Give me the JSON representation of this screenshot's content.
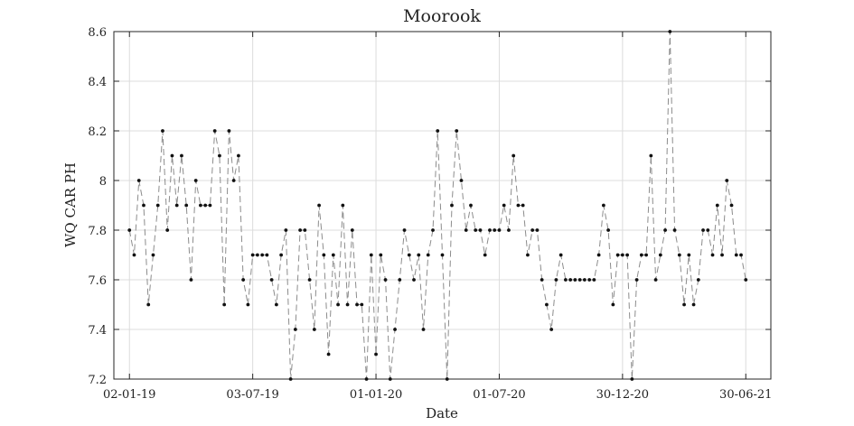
{
  "chart_data": {
    "type": "line",
    "title": "Moorook",
    "xlabel": "Date",
    "ylabel": "WQ CAR PH",
    "ylim": [
      7.2,
      8.6
    ],
    "yticks": [
      7.2,
      7.4,
      7.6,
      7.8,
      8.0,
      8.2,
      8.4,
      8.6
    ],
    "ytick_labels": [
      "7.2",
      "7.4",
      "7.6",
      "7.8",
      "8",
      "8.2",
      "8.4",
      "8.6"
    ],
    "xlim": [
      "2018-12-10",
      "2021-08-06"
    ],
    "xticks": [
      {
        "date": "2019-01-02",
        "label": "02-01-19"
      },
      {
        "date": "2019-07-03",
        "label": "03-07-19"
      },
      {
        "date": "2020-01-01",
        "label": "01-01-20"
      },
      {
        "date": "2020-07-01",
        "label": "01-07-20"
      },
      {
        "date": "2020-12-30",
        "label": "30-12-20"
      },
      {
        "date": "2021-06-30",
        "label": "30-06-21"
      }
    ],
    "grid": true,
    "line_style": "dashed",
    "line_color": "#8c8c8c",
    "marker_color": "#111111",
    "series": [
      {
        "points": [
          [
            "2019-01-02",
            7.8
          ],
          [
            "2019-01-09",
            7.7
          ],
          [
            "2019-01-16",
            8.0
          ],
          [
            "2019-01-23",
            7.9
          ],
          [
            "2019-01-30",
            7.5
          ],
          [
            "2019-02-06",
            7.7
          ],
          [
            "2019-02-13",
            7.9
          ],
          [
            "2019-02-20",
            8.2
          ],
          [
            "2019-02-27",
            7.8
          ],
          [
            "2019-03-06",
            8.1
          ],
          [
            "2019-03-13",
            7.9
          ],
          [
            "2019-03-20",
            8.1
          ],
          [
            "2019-03-27",
            7.9
          ],
          [
            "2019-04-03",
            7.6
          ],
          [
            "2019-04-10",
            8.0
          ],
          [
            "2019-04-17",
            7.9
          ],
          [
            "2019-04-24",
            7.9
          ],
          [
            "2019-05-01",
            7.9
          ],
          [
            "2019-05-08",
            8.2
          ],
          [
            "2019-05-15",
            8.1
          ],
          [
            "2019-05-22",
            7.5
          ],
          [
            "2019-05-29",
            8.2
          ],
          [
            "2019-06-05",
            8.0
          ],
          [
            "2019-06-12",
            8.1
          ],
          [
            "2019-06-19",
            7.6
          ],
          [
            "2019-06-26",
            7.5
          ],
          [
            "2019-07-03",
            7.7
          ],
          [
            "2019-07-10",
            7.7
          ],
          [
            "2019-07-17",
            7.7
          ],
          [
            "2019-07-24",
            7.7
          ],
          [
            "2019-07-31",
            7.6
          ],
          [
            "2019-08-07",
            7.5
          ],
          [
            "2019-08-14",
            7.7
          ],
          [
            "2019-08-21",
            7.8
          ],
          [
            "2019-08-28",
            7.2
          ],
          [
            "2019-09-04",
            7.4
          ],
          [
            "2019-09-11",
            7.8
          ],
          [
            "2019-09-18",
            7.8
          ],
          [
            "2019-09-25",
            7.6
          ],
          [
            "2019-10-02",
            7.4
          ],
          [
            "2019-10-09",
            7.9
          ],
          [
            "2019-10-16",
            7.7
          ],
          [
            "2019-10-23",
            7.3
          ],
          [
            "2019-10-30",
            7.7
          ],
          [
            "2019-11-06",
            7.5
          ],
          [
            "2019-11-13",
            7.9
          ],
          [
            "2019-11-20",
            7.5
          ],
          [
            "2019-11-27",
            7.8
          ],
          [
            "2019-12-04",
            7.5
          ],
          [
            "2019-12-11",
            7.5
          ],
          [
            "2019-12-18",
            7.2
          ],
          [
            "2019-12-25",
            7.7
          ],
          [
            "2020-01-01",
            7.3
          ],
          [
            "2020-01-08",
            7.7
          ],
          [
            "2020-01-15",
            7.6
          ],
          [
            "2020-01-22",
            7.2
          ],
          [
            "2020-01-29",
            7.4
          ],
          [
            "2020-02-05",
            7.6
          ],
          [
            "2020-02-12",
            7.8
          ],
          [
            "2020-02-19",
            7.7
          ],
          [
            "2020-02-26",
            7.6
          ],
          [
            "2020-03-04",
            7.7
          ],
          [
            "2020-03-11",
            7.4
          ],
          [
            "2020-03-18",
            7.7
          ],
          [
            "2020-03-25",
            7.8
          ],
          [
            "2020-04-01",
            8.2
          ],
          [
            "2020-04-08",
            7.7
          ],
          [
            "2020-04-15",
            7.2
          ],
          [
            "2020-04-22",
            7.9
          ],
          [
            "2020-04-29",
            8.2
          ],
          [
            "2020-05-06",
            8.0
          ],
          [
            "2020-05-13",
            7.8
          ],
          [
            "2020-05-20",
            7.9
          ],
          [
            "2020-05-27",
            7.8
          ],
          [
            "2020-06-03",
            7.8
          ],
          [
            "2020-06-10",
            7.7
          ],
          [
            "2020-06-17",
            7.8
          ],
          [
            "2020-06-24",
            7.8
          ],
          [
            "2020-07-01",
            7.8
          ],
          [
            "2020-07-08",
            7.9
          ],
          [
            "2020-07-15",
            7.8
          ],
          [
            "2020-07-22",
            8.1
          ],
          [
            "2020-07-29",
            7.9
          ],
          [
            "2020-08-05",
            7.9
          ],
          [
            "2020-08-12",
            7.7
          ],
          [
            "2020-08-19",
            7.8
          ],
          [
            "2020-08-26",
            7.8
          ],
          [
            "2020-09-02",
            7.6
          ],
          [
            "2020-09-09",
            7.5
          ],
          [
            "2020-09-16",
            7.4
          ],
          [
            "2020-09-23",
            7.6
          ],
          [
            "2020-09-30",
            7.7
          ],
          [
            "2020-10-07",
            7.6
          ],
          [
            "2020-10-14",
            7.6
          ],
          [
            "2020-10-21",
            7.6
          ],
          [
            "2020-10-28",
            7.6
          ],
          [
            "2020-11-04",
            7.6
          ],
          [
            "2020-11-11",
            7.6
          ],
          [
            "2020-11-18",
            7.6
          ],
          [
            "2020-11-25",
            7.7
          ],
          [
            "2020-12-02",
            7.9
          ],
          [
            "2020-12-09",
            7.8
          ],
          [
            "2020-12-16",
            7.5
          ],
          [
            "2020-12-23",
            7.7
          ],
          [
            "2020-12-30",
            7.7
          ],
          [
            "2021-01-06",
            7.7
          ],
          [
            "2021-01-13",
            7.2
          ],
          [
            "2021-01-20",
            7.6
          ],
          [
            "2021-01-27",
            7.7
          ],
          [
            "2021-02-03",
            7.7
          ],
          [
            "2021-02-10",
            8.1
          ],
          [
            "2021-02-17",
            7.6
          ],
          [
            "2021-02-24",
            7.7
          ],
          [
            "2021-03-03",
            7.8
          ],
          [
            "2021-03-10",
            8.6
          ],
          [
            "2021-03-17",
            7.8
          ],
          [
            "2021-03-24",
            7.7
          ],
          [
            "2021-03-31",
            7.5
          ],
          [
            "2021-04-07",
            7.7
          ],
          [
            "2021-04-14",
            7.5
          ],
          [
            "2021-04-21",
            7.6
          ],
          [
            "2021-04-28",
            7.8
          ],
          [
            "2021-05-05",
            7.8
          ],
          [
            "2021-05-12",
            7.7
          ],
          [
            "2021-05-19",
            7.9
          ],
          [
            "2021-05-26",
            7.7
          ],
          [
            "2021-06-02",
            8.0
          ],
          [
            "2021-06-09",
            7.9
          ],
          [
            "2021-06-16",
            7.7
          ],
          [
            "2021-06-23",
            7.7
          ],
          [
            "2021-06-30",
            7.6
          ]
        ]
      }
    ]
  }
}
